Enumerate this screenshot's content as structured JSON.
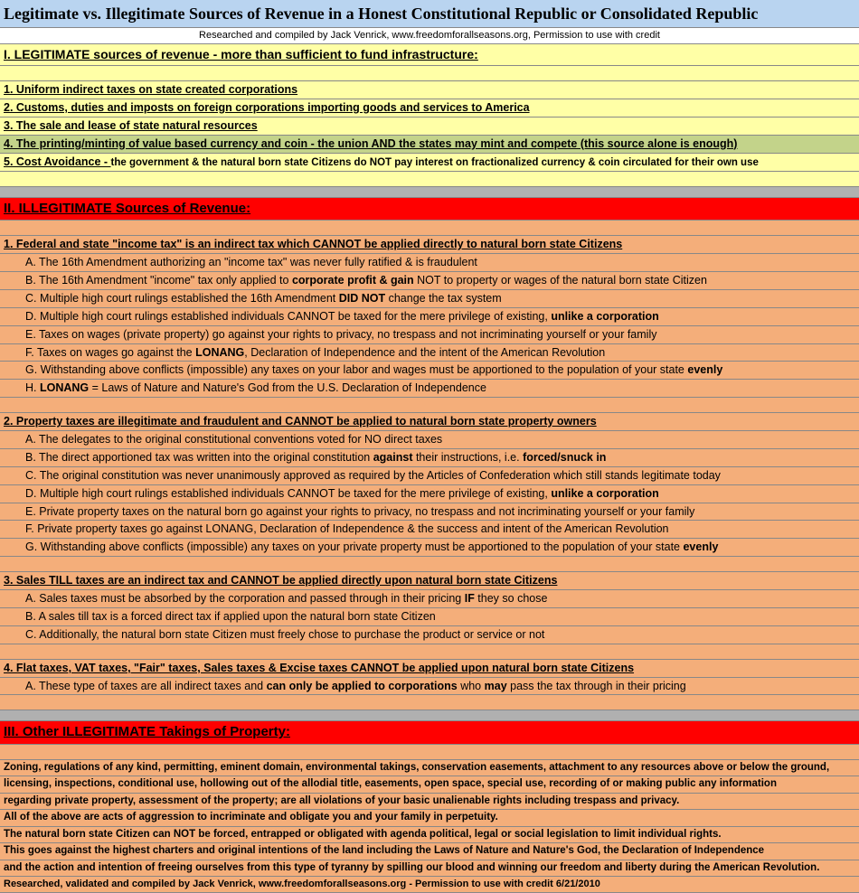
{
  "colors": {
    "title_bg": "#b9d4f0",
    "yellow": "#ffffa6",
    "olive": "#c3d38a",
    "orange": "#f4ae7a",
    "red": "#ff0000",
    "gray": "#b0b0b0"
  },
  "title": "Legitimate vs. Illegitimate Sources of Revenue in a Honest Constitutional Republic or Consolidated Republic",
  "credit": "Researched and compiled by Jack Venrick, www.freedomforallseasons.org, Permission to use with credit",
  "sec1": {
    "head": "I. LEGITIMATE sources of revenue - more than sufficient to fund infrastructure:",
    "items": [
      "1. Uniform indirect taxes on state created corporations",
      "2. Customs, duties and imposts on foreign corporations importing goods and services to America",
      "3. The sale and lease of state natural resources",
      "4. The printing/minting of value based currency and coin - the union AND the states may mint and compete (this source alone is enough)"
    ],
    "item5_a": "5. Cost Avoidance - ",
    "item5_b": "the government & the natural born state Citizens do NOT pay interest on fractionalized currency & coin circulated for their own use"
  },
  "sec2": {
    "head": "II.  ILLEGITIMATE Sources of Revenue:",
    "g1": {
      "head": "1. Federal and state \"income tax\" is an indirect tax which CANNOT be applied directly to natural born state Citizens",
      "a": "A.  The 16th Amendment authorizing an \"income tax\" was never fully ratified & is fraudulent",
      "b1": "B.  The 16th Amendment \"income\" tax only applied to ",
      "b2": "corporate profit & gain",
      "b3": " NOT to property or wages of the natural born state Citizen",
      "c1": "C.  Multiple high court rulings established the 16th Amendment ",
      "c2": "DID NOT",
      "c3": " change the tax system",
      "d1": "D.  Multiple high court rulings established individuals CANNOT be taxed for the mere privilege of existing, ",
      "d2": "unlike a corporation",
      "e": "E.  Taxes on wages (private property) go against your rights to privacy, no trespass and not incriminating yourself or your family",
      "f1": "F.  Taxes on wages go against the ",
      "f2": "LONANG",
      "f3": ", Declaration of Independence and the intent of the American Revolution",
      "g1": "G.  Withstanding above conflicts (impossible) any taxes on your labor and wages must be apportioned to the population of your state ",
      "g2": "evenly",
      "h1": "H.  ",
      "h2": "LONANG",
      "h3": " = Laws of Nature and Nature's God from the U.S. Declaration of Independence"
    },
    "g2": {
      "head": "2. Property taxes are illegitimate and fraudulent and CANNOT be applied to natural born state property owners",
      "a": "A.  The delegates to the original constitutional conventions voted for NO direct taxes",
      "b1": "B.  The direct apportioned tax was written into the original constitution ",
      "b2": "against",
      "b3": " their instructions, i.e. ",
      "b4": "forced/snuck in",
      "c": "C.  The original constitution was never unanimously approved as required by the Articles of Confederation which still stands legitimate today",
      "d1": "D.  Multiple high court rulings established individuals CANNOT be taxed for the mere privilege of existing, ",
      "d2": "unlike a corporation",
      "e": "E.  Private property taxes on the natural born go against your rights to privacy, no trespass and not incriminating yourself or your family",
      "f": "F.  Private property taxes go against LONANG, Declaration of Independence & the success and intent of the American Revolution",
      "g1": "G.  Withstanding above conflicts (impossible) any taxes on your private property must be apportioned to the population of your state ",
      "g2": "evenly"
    },
    "g3": {
      "head": "3. Sales TILL taxes are an indirect tax and CANNOT be applied directly upon natural born state Citizens",
      "a1": "A.  Sales taxes must be absorbed by the corporation and passed through in their pricing ",
      "a2": "IF",
      "a3": " they so chose",
      "b": "B.  A sales till tax is a forced direct tax if applied upon the natural born state Citizen",
      "c": "C.  Additionally, the natural born state Citizen must freely chose to purchase the product or service or not"
    },
    "g4": {
      "head": "4. Flat taxes, VAT taxes, \"Fair\" taxes, Sales taxes & Excise taxes CANNOT be applied upon natural born state Citizens",
      "a1": "A.  These type of taxes are all indirect taxes and ",
      "a2": "can only be applied to corporations",
      "a3": " who ",
      "a4": "may",
      "a5": " pass the tax through in their pricing"
    }
  },
  "sec3": {
    "head": "III.  Other ILLEGITIMATE Takings of Property:",
    "lines": [
      "Zoning, regulations of any kind, permitting, eminent domain, environmental takings, conservation easements, attachment to any resources above or below the ground,",
      "licensing, inspections, conditional use, hollowing out of the allodial title, easements, open space, special use, recording of or making public any information",
      "regarding private property, assessment of the property; are all violations of your basic unalienable rights including trespass and privacy.",
      "All of the above are acts of aggression to incriminate and obligate you and your family in perpetuity.",
      "The natural born state Citizen can NOT be forced, entrapped or obligated with agenda political, legal or social legislation to limit individual rights.",
      "This goes against the highest charters and original intentions of the land including the Laws of Nature and Nature's God, the Declaration of Independence",
      "and the action and intention of freeing ourselves from this type of tyranny by spilling our blood and winning our freedom and liberty during the American Revolution."
    ],
    "footer": "Researched, validated and compiled by Jack Venrick, www.freedomforallseasons.org - Permission to use with credit 6/21/2010"
  }
}
